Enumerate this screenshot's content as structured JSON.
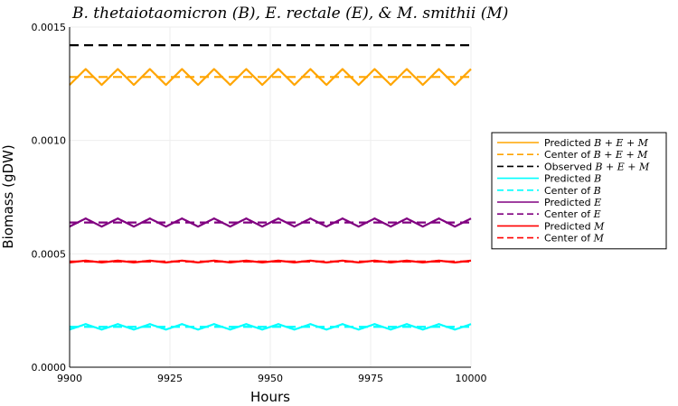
{
  "chart_data": {
    "type": "line",
    "title": "B. thetaiotaomicron (B),  E. rectale (E),  & M. smithii (M)",
    "xlabel": "Hours",
    "ylabel": "Biomass (gDW)",
    "xlim": [
      9900,
      10000
    ],
    "ylim": [
      0.0,
      0.0015
    ],
    "xticks": [
      9900,
      9925,
      9950,
      9975,
      10000
    ],
    "xtick_labels": [
      "9900",
      "9925",
      "9950",
      "9975",
      "10000"
    ],
    "yticks": [
      0.0,
      0.0005,
      0.001,
      0.0015
    ],
    "ytick_labels": [
      "0.0000",
      "0.0005",
      "0.0010",
      "0.0015"
    ],
    "grid": true,
    "legend_position": "right",
    "oscillation_period_hours": 8,
    "series": [
      {
        "name": "Predicted B + E + M",
        "legend_prefix": "Predicted ",
        "legend_math": "B + E + M",
        "color": "#FFA500",
        "style": "solid",
        "center": 0.00128,
        "amplitude": 3.5e-05
      },
      {
        "name": "Center of B + E + M",
        "legend_prefix": "Center of ",
        "legend_math": "B + E + M",
        "color": "#FFA500",
        "style": "dashed",
        "value": 0.00128
      },
      {
        "name": "Observed B + E + M",
        "legend_prefix": "Observed ",
        "legend_math": "B + E + M",
        "color": "#000000",
        "style": "dashed",
        "value": 0.00142
      },
      {
        "name": "Predicted B",
        "legend_prefix": "Predicted ",
        "legend_math": "B",
        "color": "#00FFFF",
        "style": "solid",
        "center": 0.000178,
        "amplitude": 1.2e-05
      },
      {
        "name": "Center of B",
        "legend_prefix": "Center of ",
        "legend_math": "B",
        "color": "#00FFFF",
        "style": "dashed",
        "value": 0.000178
      },
      {
        "name": "Predicted E",
        "legend_prefix": "Predicted ",
        "legend_math": "E",
        "color": "#800080",
        "style": "solid",
        "center": 0.000638,
        "amplitude": 1.8e-05
      },
      {
        "name": "Center of E",
        "legend_prefix": "Center of ",
        "legend_math": "E",
        "color": "#800080",
        "style": "dashed",
        "value": 0.000638
      },
      {
        "name": "Predicted M",
        "legend_prefix": "Predicted ",
        "legend_math": "M",
        "color": "#FF0000",
        "style": "solid",
        "center": 0.000466,
        "amplitude": 4e-06
      },
      {
        "name": "Center of M",
        "legend_prefix": "Center of ",
        "legend_math": "M",
        "color": "#FF0000",
        "style": "dashed",
        "value": 0.000466
      }
    ]
  }
}
